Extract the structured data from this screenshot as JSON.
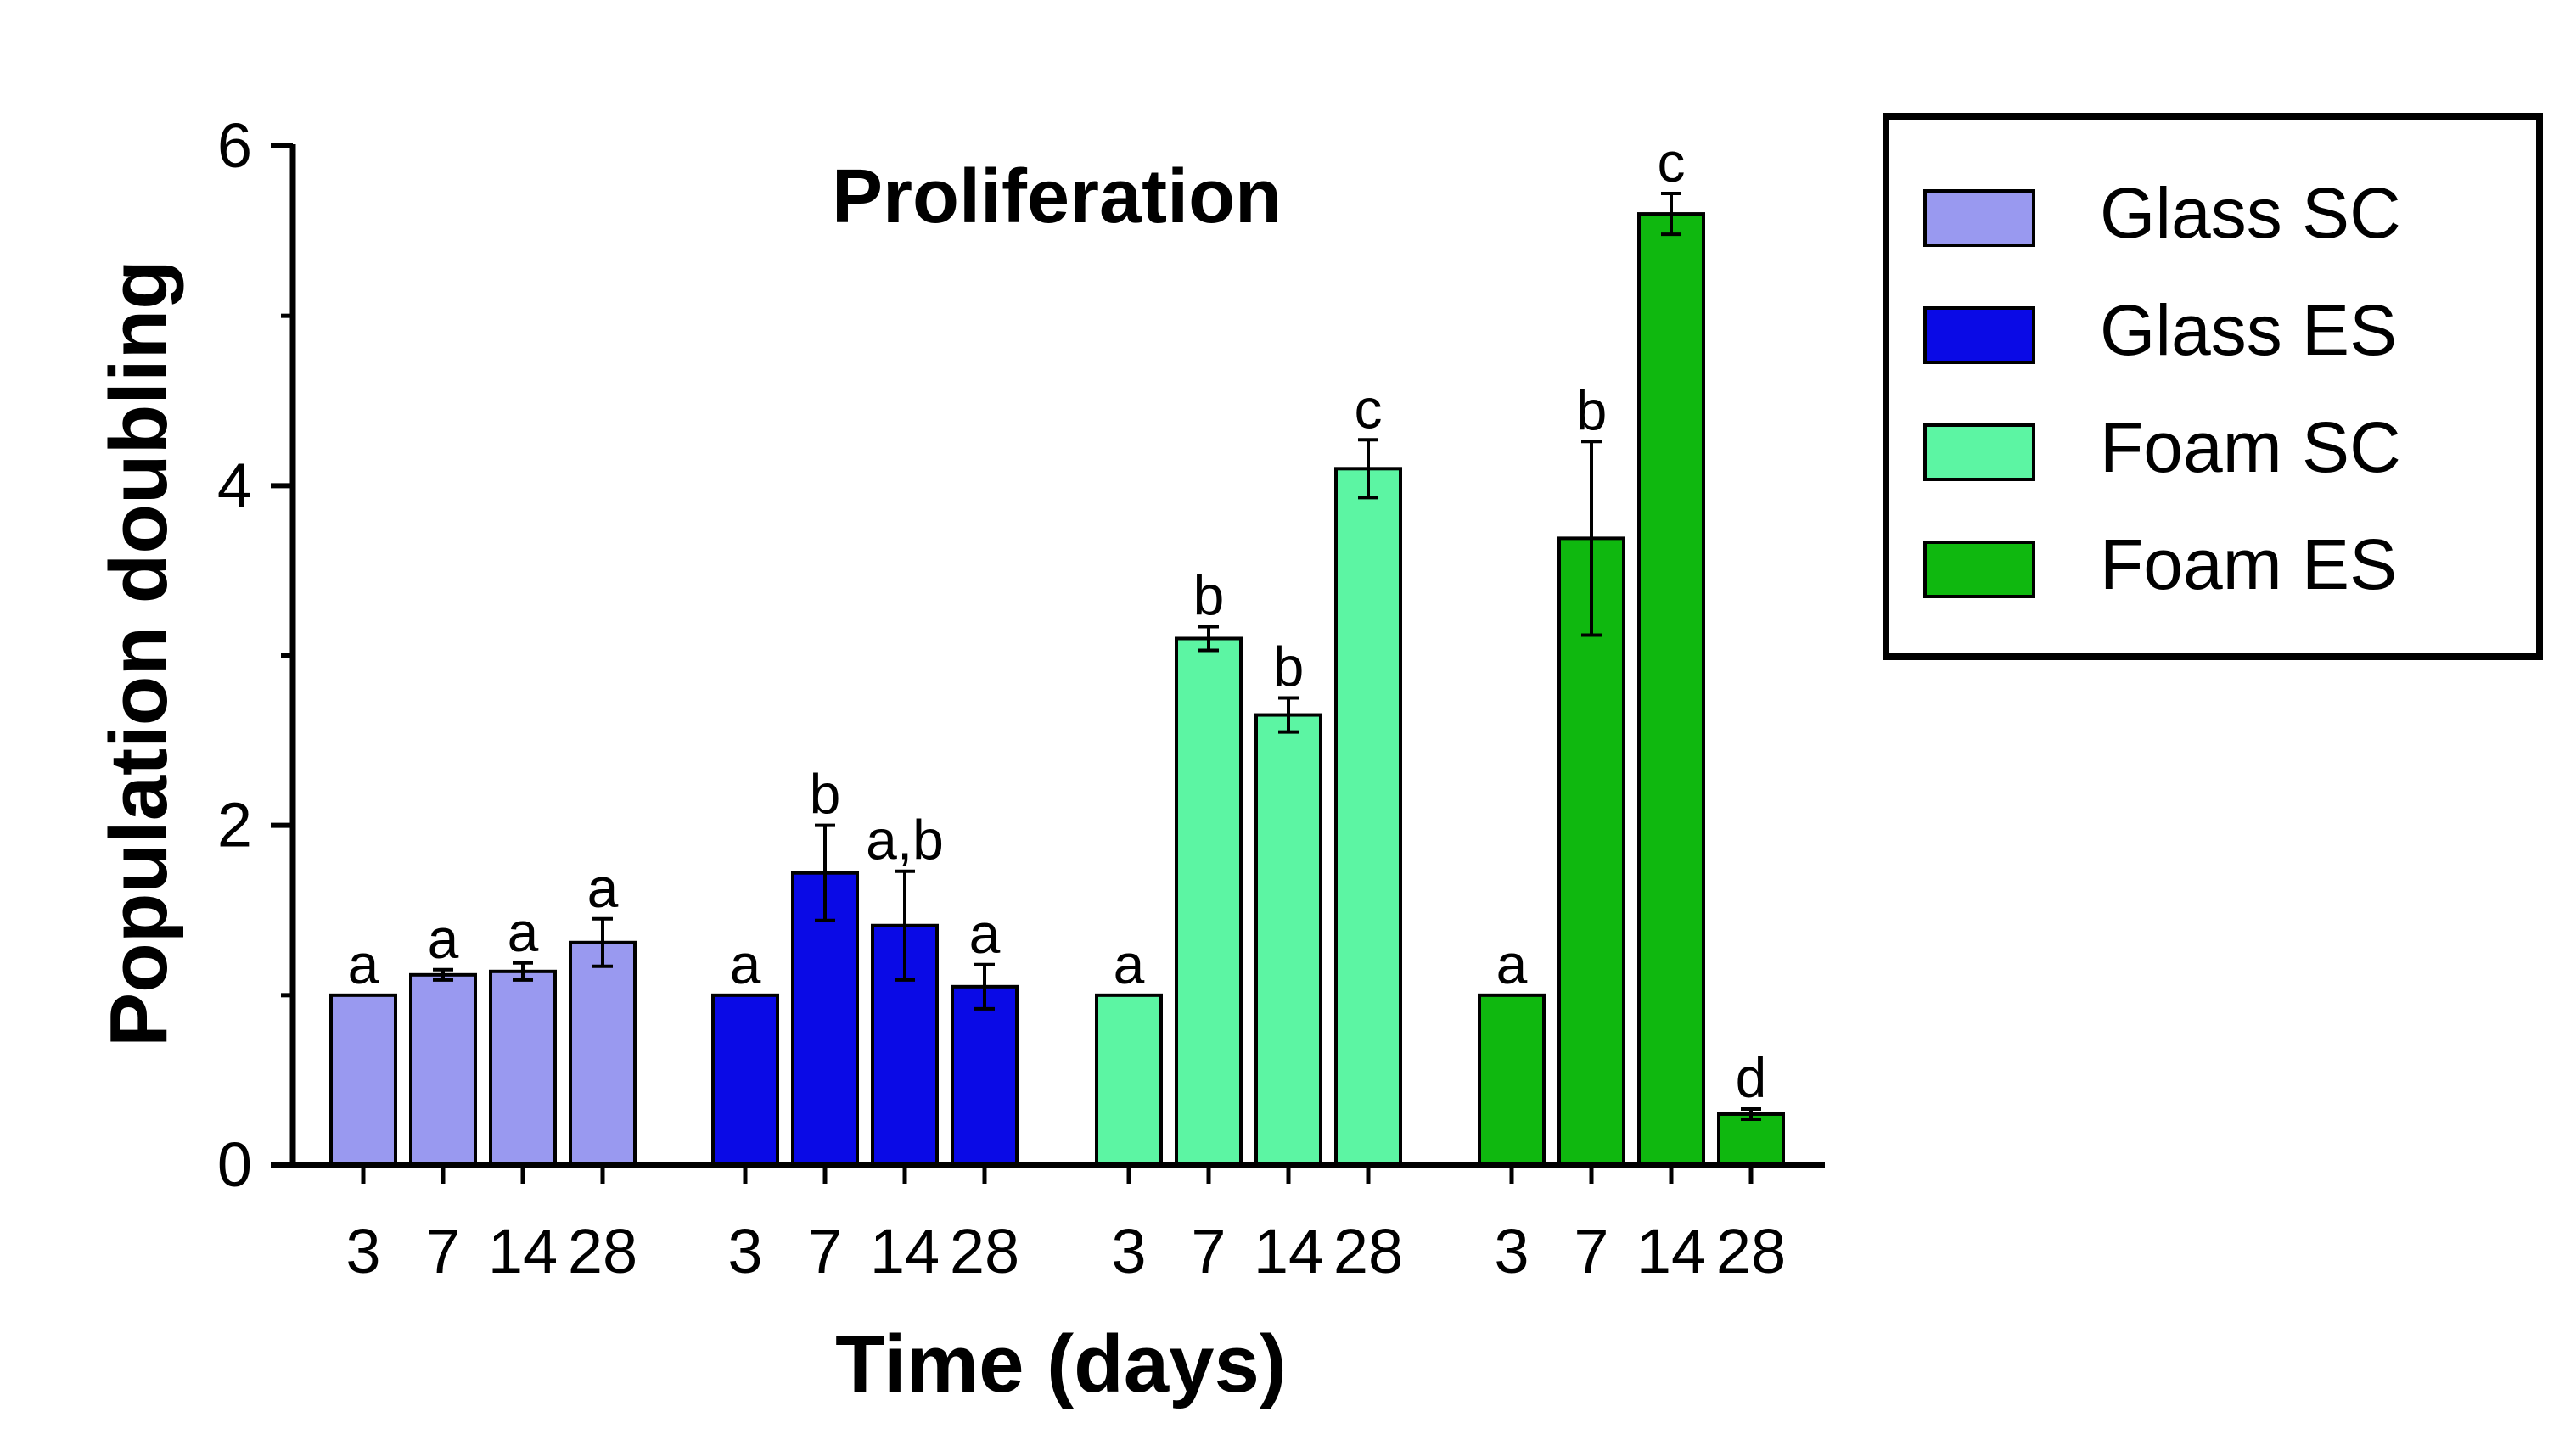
{
  "chart_data": {
    "type": "bar",
    "title": "Proliferation",
    "xlabel": "Time (days)",
    "ylabel": "Population doubling",
    "ylim": [
      0,
      6
    ],
    "yticks": [
      0,
      2,
      4,
      6
    ],
    "categories": [
      "3",
      "7",
      "14",
      "28"
    ],
    "legend_position": "right",
    "series": [
      {
        "name": "Glass SC",
        "color": "#9999f0",
        "values": [
          1.0,
          1.12,
          1.14,
          1.31
        ],
        "errors": [
          0.0,
          0.03,
          0.05,
          0.14
        ],
        "letters": [
          "a",
          "a",
          "a",
          "a"
        ]
      },
      {
        "name": "Glass ES",
        "color": "#0a0ae6",
        "values": [
          1.0,
          1.72,
          1.41,
          1.05
        ],
        "errors": [
          0.0,
          0.28,
          0.32,
          0.13
        ],
        "letters": [
          "a",
          "b",
          "a,b",
          "a"
        ]
      },
      {
        "name": "Foam SC",
        "color": "#5cf5a3",
        "values": [
          1.0,
          3.1,
          2.65,
          4.1
        ],
        "errors": [
          0.0,
          0.07,
          0.1,
          0.17
        ],
        "letters": [
          "a",
          "b",
          "b",
          "c"
        ]
      },
      {
        "name": "Foam ES",
        "color": "#0fb80f",
        "values": [
          1.0,
          3.69,
          5.6,
          0.3
        ],
        "errors": [
          0.0,
          0.57,
          0.12,
          0.03
        ],
        "letters": [
          "a",
          "b",
          "c",
          "d"
        ]
      }
    ]
  }
}
